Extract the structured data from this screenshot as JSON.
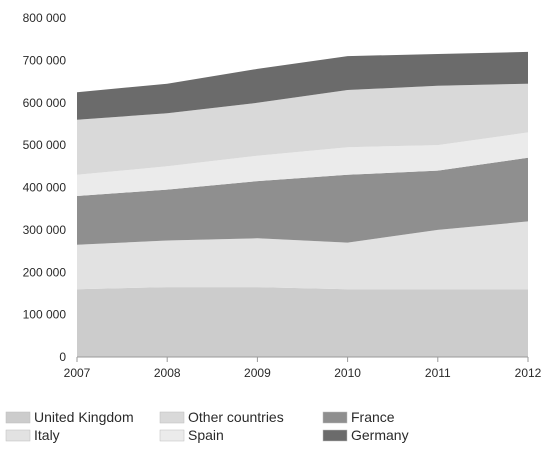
{
  "chart_data": {
    "type": "area",
    "stacked": true,
    "title": "",
    "xlabel": "",
    "ylabel": "",
    "x": [
      "2007",
      "2008",
      "2009",
      "2010",
      "2011",
      "2012"
    ],
    "ylim": [
      0,
      800000
    ],
    "yticks": [
      "0",
      "100 000",
      "200 000",
      "300 000",
      "400 000",
      "500 000",
      "600 000",
      "700 000",
      "800 000"
    ],
    "series": [
      {
        "name": "United Kingdom",
        "color": "#cccccc",
        "values": [
          160000,
          165000,
          165000,
          160000,
          160000,
          160000
        ]
      },
      {
        "name": "Italy",
        "color": "#e2e2e2",
        "values": [
          105000,
          110000,
          115000,
          110000,
          140000,
          160000
        ]
      },
      {
        "name": "France",
        "color": "#8f8f8f",
        "values": [
          115000,
          120000,
          135000,
          160000,
          140000,
          150000
        ]
      },
      {
        "name": "Spain",
        "color": "#ebebeb",
        "values": [
          50000,
          55000,
          60000,
          65000,
          60000,
          60000
        ]
      },
      {
        "name": "Other countries",
        "color": "#d9d9d9",
        "values": [
          130000,
          125000,
          125000,
          135000,
          140000,
          115000
        ]
      },
      {
        "name": "Germany",
        "color": "#6b6b6b",
        "values": [
          65000,
          70000,
          80000,
          80000,
          75000,
          75000
        ]
      }
    ],
    "grid": false,
    "legend_position": "bottom-left",
    "legend_order": [
      "United Kingdom",
      "Other countries",
      "France",
      "Italy",
      "Spain",
      "Germany"
    ]
  }
}
